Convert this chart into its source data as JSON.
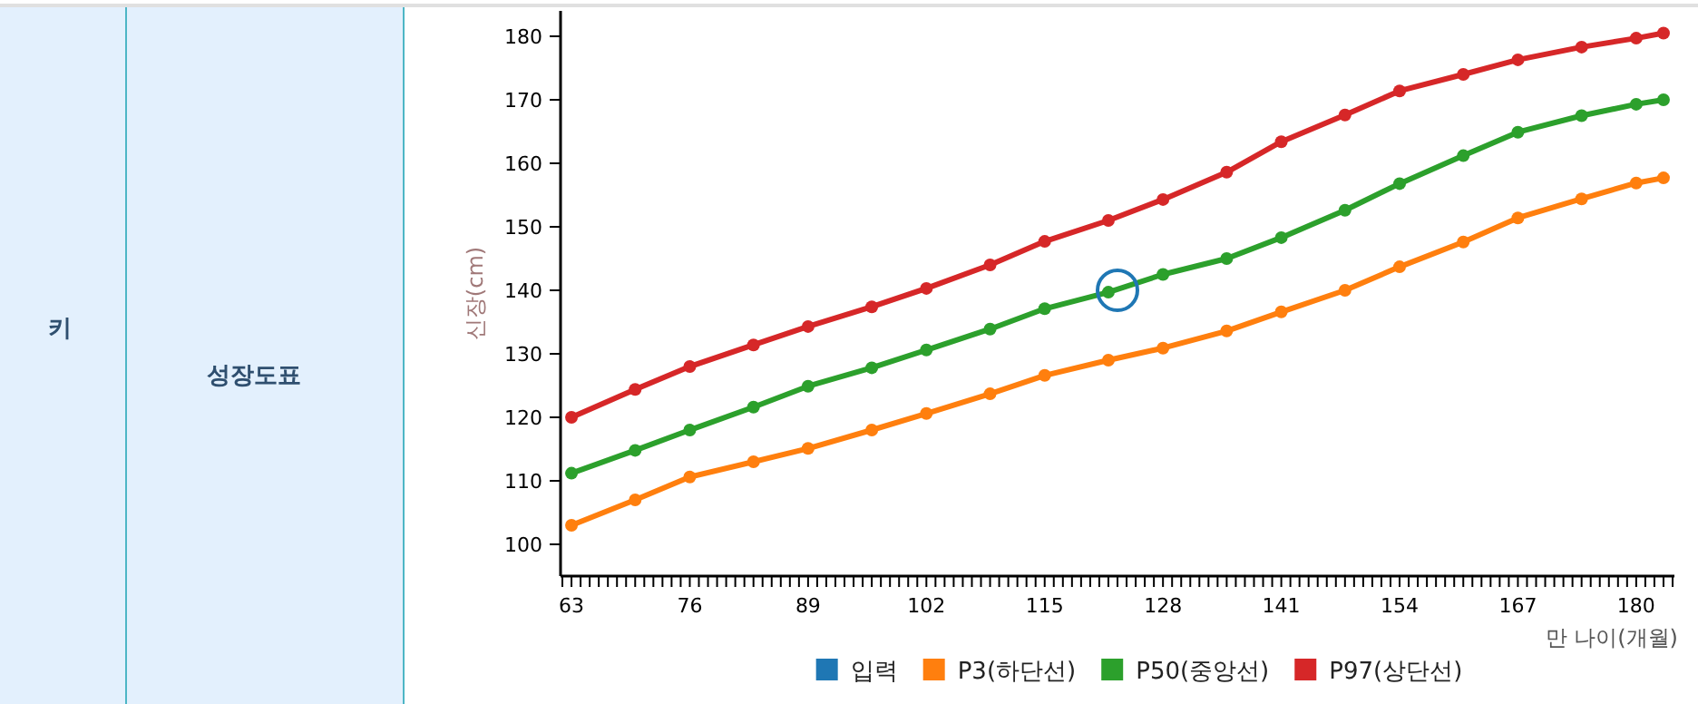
{
  "chart_data": {
    "type": "line",
    "xlabel": "만 나이(개월)",
    "ylabel": "신장(cm)",
    "annotations": [
      "키",
      "성장도표"
    ],
    "xlim": [
      61.8,
      184.2
    ],
    "ylim": [
      95,
      184
    ],
    "yticks": [
      100,
      110,
      120,
      130,
      140,
      150,
      160,
      170,
      180
    ],
    "xticks": [
      {
        "value": 62,
        "label": null
      },
      63,
      {
        "value": 64,
        "label": null
      },
      {
        "value": 65,
        "label": null
      },
      {
        "value": 66,
        "label": null
      },
      {
        "value": 67,
        "label": null
      },
      {
        "value": 68,
        "label": null
      },
      {
        "value": 69,
        "label": null
      },
      {
        "value": 70,
        "label": null
      },
      {
        "value": 71,
        "label": null
      },
      {
        "value": 72,
        "label": null
      },
      {
        "value": 73,
        "label": null
      },
      {
        "value": 74,
        "label": null
      },
      {
        "value": 75,
        "label": null
      },
      76,
      {
        "value": 77,
        "label": null
      },
      {
        "value": 78,
        "label": null
      },
      {
        "value": 79,
        "label": null
      },
      {
        "value": 80,
        "label": null
      },
      {
        "value": 81,
        "label": null
      },
      {
        "value": 82,
        "label": null
      },
      {
        "value": 83,
        "label": null
      },
      {
        "value": 84,
        "label": null
      },
      {
        "value": 85,
        "label": null
      },
      {
        "value": 86,
        "label": null
      },
      {
        "value": 87,
        "label": null
      },
      {
        "value": 88,
        "label": null
      },
      89,
      {
        "value": 90,
        "label": null
      },
      {
        "value": 91,
        "label": null
      },
      {
        "value": 92,
        "label": null
      },
      {
        "value": 93,
        "label": null
      },
      {
        "value": 94,
        "label": null
      },
      {
        "value": 95,
        "label": null
      },
      {
        "value": 96,
        "label": null
      },
      {
        "value": 97,
        "label": null
      },
      {
        "value": 98,
        "label": null
      },
      {
        "value": 99,
        "label": null
      },
      {
        "value": 100,
        "label": null
      },
      {
        "value": 101,
        "label": null
      },
      102,
      {
        "value": 103,
        "label": null
      },
      {
        "value": 104,
        "label": null
      },
      {
        "value": 105,
        "label": null
      },
      {
        "value": 106,
        "label": null
      },
      {
        "value": 107,
        "label": null
      },
      {
        "value": 108,
        "label": null
      },
      {
        "value": 109,
        "label": null
      },
      {
        "value": 110,
        "label": null
      },
      {
        "value": 111,
        "label": null
      },
      {
        "value": 112,
        "label": null
      },
      {
        "value": 113,
        "label": null
      },
      {
        "value": 114,
        "label": null
      },
      115,
      {
        "value": 116,
        "label": null
      },
      {
        "value": 117,
        "label": null
      },
      {
        "value": 118,
        "label": null
      },
      {
        "value": 119,
        "label": null
      },
      {
        "value": 120,
        "label": null
      },
      {
        "value": 121,
        "label": null
      },
      {
        "value": 122,
        "label": null
      },
      {
        "value": 123,
        "label": null
      },
      {
        "value": 124,
        "label": null
      },
      {
        "value": 125,
        "label": null
      },
      {
        "value": 126,
        "label": null
      },
      {
        "value": 127,
        "label": null
      },
      128,
      {
        "value": 129,
        "label": null
      },
      {
        "value": 130,
        "label": null
      },
      {
        "value": 131,
        "label": null
      },
      {
        "value": 132,
        "label": null
      },
      {
        "value": 133,
        "label": null
      },
      {
        "value": 134,
        "label": null
      },
      {
        "value": 135,
        "label": null
      },
      {
        "value": 136,
        "label": null
      },
      {
        "value": 137,
        "label": null
      },
      {
        "value": 138,
        "label": null
      },
      {
        "value": 139,
        "label": null
      },
      {
        "value": 140,
        "label": null
      },
      141,
      {
        "value": 142,
        "label": null
      },
      {
        "value": 143,
        "label": null
      },
      {
        "value": 144,
        "label": null
      },
      {
        "value": 145,
        "label": null
      },
      {
        "value": 146,
        "label": null
      },
      {
        "value": 147,
        "label": null
      },
      {
        "value": 148,
        "label": null
      },
      {
        "value": 149,
        "label": null
      },
      {
        "value": 150,
        "label": null
      },
      {
        "value": 151,
        "label": null
      },
      {
        "value": 152,
        "label": null
      },
      {
        "value": 153,
        "label": null
      },
      154,
      {
        "value": 155,
        "label": null
      },
      {
        "value": 156,
        "label": null
      },
      {
        "value": 157,
        "label": null
      },
      {
        "value": 158,
        "label": null
      },
      {
        "value": 159,
        "label": null
      },
      {
        "value": 160,
        "label": null
      },
      {
        "value": 161,
        "label": null
      },
      {
        "value": 162,
        "label": null
      },
      {
        "value": 163,
        "label": null
      },
      {
        "value": 164,
        "label": null
      },
      {
        "value": 165,
        "label": null
      },
      {
        "value": 166,
        "label": null
      },
      167,
      {
        "value": 168,
        "label": null
      },
      {
        "value": 169,
        "label": null
      },
      {
        "value": 170,
        "label": null
      },
      {
        "value": 171,
        "label": null
      },
      {
        "value": 172,
        "label": null
      },
      {
        "value": 173,
        "label": null
      },
      {
        "value": 174,
        "label": null
      },
      {
        "value": 175,
        "label": null
      },
      {
        "value": 176,
        "label": null
      },
      {
        "value": 177,
        "label": null
      },
      {
        "value": 178,
        "label": null
      },
      {
        "value": 179,
        "label": null
      },
      180,
      {
        "value": 181,
        "label": null
      },
      {
        "value": 182,
        "label": null
      },
      {
        "value": 183,
        "label": null
      },
      {
        "value": 184,
        "label": null
      }
    ],
    "x": [
      63,
      70,
      76,
      83,
      89,
      96,
      102,
      109,
      115,
      122,
      128,
      135,
      141,
      148,
      154,
      161,
      167,
      174,
      180,
      183
    ],
    "marker": "circle",
    "grid": false,
    "legend": "bottom",
    "series": [
      {
        "name": "입력",
        "type": "scatter",
        "color": "#1f77b4",
        "x": [
          123
        ],
        "values": [
          140
        ]
      },
      {
        "name": "P3(하단선)",
        "color": "#ff7f0e",
        "values": [
          103,
          107,
          110.6,
          113,
          115.1,
          118,
          120.6,
          123.7,
          126.6,
          129,
          130.9,
          133.6,
          136.6,
          140,
          143.7,
          147.6,
          151.4,
          154.4,
          156.9,
          157.7
        ]
      },
      {
        "name": "P50(중앙선)",
        "color": "#2ca02c",
        "values": [
          111.2,
          114.8,
          118,
          121.6,
          124.9,
          127.8,
          130.6,
          133.9,
          137.1,
          139.7,
          142.5,
          145,
          148.3,
          152.6,
          156.8,
          161.2,
          164.9,
          167.5,
          169.3,
          170
        ]
      },
      {
        "name": "P97(상단선)",
        "color": "#d62728",
        "values": [
          120,
          124.4,
          128,
          131.4,
          134.3,
          137.4,
          140.3,
          144,
          147.7,
          151,
          154.3,
          158.6,
          163.4,
          167.6,
          171.4,
          174,
          176.3,
          178.3,
          179.7,
          180.5
        ]
      }
    ]
  }
}
